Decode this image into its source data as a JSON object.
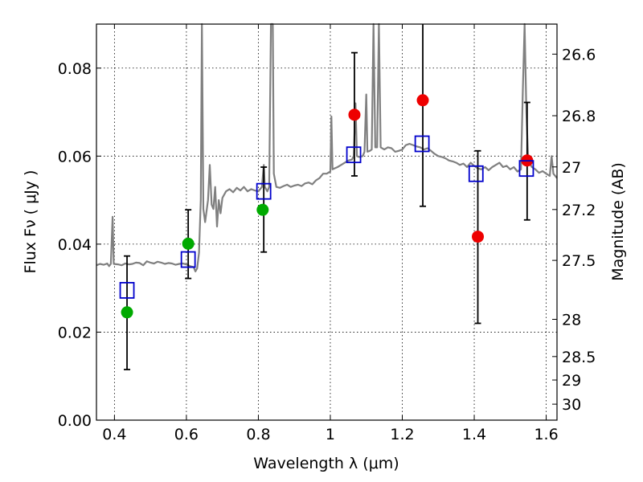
{
  "chart_data": {
    "type": "scatter",
    "xlabel": "Wavelength  λ (μm)",
    "ylabel": "Flux  Fν  ( μJy )",
    "ylabel_right": "Magnitude (AB)",
    "xlim": [
      0.35,
      1.63
    ],
    "ylim": [
      0.0,
      0.09
    ],
    "grid": true,
    "x_ticks": [
      0.4,
      0.6,
      0.8,
      1.0,
      1.2,
      1.4,
      1.6
    ],
    "x_tick_labels": [
      "0.4",
      "0.6",
      "0.8",
      "1",
      "1.2",
      "1.4",
      "1.6"
    ],
    "y_ticks": [
      0.0,
      0.02,
      0.04,
      0.06,
      0.08
    ],
    "y_tick_labels": [
      "0.00",
      "0.02",
      "0.04",
      "0.06",
      "0.08"
    ],
    "mag_ticks": [
      {
        "mag": 26.6,
        "label": "26.6"
      },
      {
        "mag": 26.8,
        "label": "26.8"
      },
      {
        "mag": 27.0,
        "label": "27"
      },
      {
        "mag": 27.2,
        "label": "27.2"
      },
      {
        "mag": 27.5,
        "label": "27.5"
      },
      {
        "mag": 28.0,
        "label": "28"
      },
      {
        "mag": 28.5,
        "label": "28.5"
      },
      {
        "mag": 29.0,
        "label": "29"
      },
      {
        "mag": 30.0,
        "label": "30"
      }
    ],
    "series": [
      {
        "kind": "spectrum",
        "color": "#808080",
        "points": [
          [
            0.35,
            0.0352
          ],
          [
            0.36,
            0.0355
          ],
          [
            0.37,
            0.0353
          ],
          [
            0.38,
            0.0356
          ],
          [
            0.385,
            0.035
          ],
          [
            0.39,
            0.0355
          ],
          [
            0.395,
            0.0462
          ],
          [
            0.398,
            0.0355
          ],
          [
            0.41,
            0.0354
          ],
          [
            0.42,
            0.0352
          ],
          [
            0.43,
            0.0356
          ],
          [
            0.44,
            0.0354
          ],
          [
            0.45,
            0.0355
          ],
          [
            0.46,
            0.0358
          ],
          [
            0.47,
            0.0357
          ],
          [
            0.48,
            0.0352
          ],
          [
            0.49,
            0.0361
          ],
          [
            0.5,
            0.0358
          ],
          [
            0.51,
            0.0356
          ],
          [
            0.52,
            0.036
          ],
          [
            0.53,
            0.0358
          ],
          [
            0.54,
            0.0355
          ],
          [
            0.55,
            0.0357
          ],
          [
            0.56,
            0.0356
          ],
          [
            0.57,
            0.0353
          ],
          [
            0.58,
            0.0355
          ],
          [
            0.59,
            0.0356
          ],
          [
            0.6,
            0.0354
          ],
          [
            0.61,
            0.035
          ],
          [
            0.62,
            0.0348
          ],
          [
            0.625,
            0.0338
          ],
          [
            0.63,
            0.0345
          ],
          [
            0.635,
            0.038
          ],
          [
            0.64,
            0.05
          ],
          [
            0.643,
            0.09
          ],
          [
            0.647,
            0.048
          ],
          [
            0.652,
            0.045
          ],
          [
            0.66,
            0.05
          ],
          [
            0.665,
            0.058
          ],
          [
            0.67,
            0.049
          ],
          [
            0.675,
            0.048
          ],
          [
            0.68,
            0.053
          ],
          [
            0.685,
            0.044
          ],
          [
            0.69,
            0.05
          ],
          [
            0.695,
            0.047
          ],
          [
            0.7,
            0.0505
          ],
          [
            0.71,
            0.052
          ],
          [
            0.72,
            0.0525
          ],
          [
            0.73,
            0.0518
          ],
          [
            0.74,
            0.0528
          ],
          [
            0.75,
            0.0522
          ],
          [
            0.76,
            0.053
          ],
          [
            0.77,
            0.052
          ],
          [
            0.78,
            0.0525
          ],
          [
            0.79,
            0.0522
          ],
          [
            0.8,
            0.052
          ],
          [
            0.81,
            0.053
          ],
          [
            0.815,
            0.058
          ],
          [
            0.818,
            0.053
          ],
          [
            0.825,
            0.052
          ],
          [
            0.83,
            0.053
          ],
          [
            0.835,
            0.09
          ],
          [
            0.84,
            0.09
          ],
          [
            0.843,
            0.056
          ],
          [
            0.85,
            0.053
          ],
          [
            0.86,
            0.0528
          ],
          [
            0.87,
            0.0532
          ],
          [
            0.88,
            0.0535
          ],
          [
            0.89,
            0.053
          ],
          [
            0.9,
            0.0533
          ],
          [
            0.91,
            0.0535
          ],
          [
            0.92,
            0.0532
          ],
          [
            0.93,
            0.0538
          ],
          [
            0.94,
            0.054
          ],
          [
            0.95,
            0.0536
          ],
          [
            0.96,
            0.0545
          ],
          [
            0.97,
            0.055
          ],
          [
            0.98,
            0.056
          ],
          [
            0.99,
            0.056
          ],
          [
            1.0,
            0.0565
          ],
          [
            1.003,
            0.069
          ],
          [
            1.006,
            0.057
          ],
          [
            1.02,
            0.0575
          ],
          [
            1.03,
            0.058
          ],
          [
            1.04,
            0.0585
          ],
          [
            1.05,
            0.059
          ],
          [
            1.06,
            0.0592
          ],
          [
            1.065,
            0.06
          ],
          [
            1.07,
            0.072
          ],
          [
            1.074,
            0.06
          ],
          [
            1.08,
            0.0598
          ],
          [
            1.09,
            0.06
          ],
          [
            1.095,
            0.061
          ],
          [
            1.1,
            0.074
          ],
          [
            1.103,
            0.061
          ],
          [
            1.11,
            0.0612
          ],
          [
            1.115,
            0.0615
          ],
          [
            1.12,
            0.09
          ],
          [
            1.125,
            0.062
          ],
          [
            1.13,
            0.062
          ],
          [
            1.135,
            0.09
          ],
          [
            1.14,
            0.062
          ],
          [
            1.15,
            0.0615
          ],
          [
            1.16,
            0.062
          ],
          [
            1.17,
            0.0618
          ],
          [
            1.18,
            0.061
          ],
          [
            1.19,
            0.0612
          ],
          [
            1.2,
            0.0615
          ],
          [
            1.21,
            0.0625
          ],
          [
            1.22,
            0.0628
          ],
          [
            1.23,
            0.0625
          ],
          [
            1.24,
            0.0622
          ],
          [
            1.25,
            0.062
          ],
          [
            1.26,
            0.0615
          ],
          [
            1.27,
            0.0618
          ],
          [
            1.28,
            0.0612
          ],
          [
            1.29,
            0.0605
          ],
          [
            1.3,
            0.06
          ],
          [
            1.31,
            0.0598
          ],
          [
            1.32,
            0.0595
          ],
          [
            1.33,
            0.059
          ],
          [
            1.34,
            0.0588
          ],
          [
            1.35,
            0.0585
          ],
          [
            1.36,
            0.058
          ],
          [
            1.37,
            0.0583
          ],
          [
            1.38,
            0.0575
          ],
          [
            1.39,
            0.0585
          ],
          [
            1.4,
            0.0578
          ],
          [
            1.41,
            0.0572
          ],
          [
            1.42,
            0.057
          ],
          [
            1.43,
            0.0575
          ],
          [
            1.44,
            0.0568
          ],
          [
            1.45,
            0.0575
          ],
          [
            1.46,
            0.058
          ],
          [
            1.47,
            0.0585
          ],
          [
            1.48,
            0.0575
          ],
          [
            1.49,
            0.0578
          ],
          [
            1.5,
            0.057
          ],
          [
            1.51,
            0.0575
          ],
          [
            1.52,
            0.0565
          ],
          [
            1.53,
            0.057
          ],
          [
            1.535,
            0.075
          ],
          [
            1.54,
            0.09
          ],
          [
            1.545,
            0.07
          ],
          [
            1.55,
            0.059
          ],
          [
            1.56,
            0.0575
          ],
          [
            1.57,
            0.057
          ],
          [
            1.58,
            0.0562
          ],
          [
            1.59,
            0.0566
          ],
          [
            1.6,
            0.056
          ],
          [
            1.61,
            0.0555
          ],
          [
            1.615,
            0.06
          ],
          [
            1.62,
            0.056
          ],
          [
            1.63,
            0.055
          ]
        ]
      },
      {
        "kind": "model-boxes",
        "color": "#0000cc",
        "x": [
          0.435,
          0.605,
          0.815,
          1.065,
          1.255,
          1.405,
          1.545
        ],
        "y": [
          0.0295,
          0.0365,
          0.052,
          0.0603,
          0.0628,
          0.056,
          0.0572
        ]
      },
      {
        "kind": "observed-green",
        "color": "#00aa00",
        "x": [
          0.435,
          0.605,
          0.812
        ],
        "y": [
          0.0245,
          0.0401,
          0.0478
        ]
      },
      {
        "kind": "observed-red",
        "color": "#ee0000",
        "x": [
          1.067,
          1.257,
          1.41,
          1.547
        ],
        "y": [
          0.0694,
          0.0727,
          0.0417,
          0.059
        ]
      },
      {
        "kind": "error-bars",
        "color": "#000000",
        "bars": [
          {
            "x": 0.435,
            "low": 0.0115,
            "high": 0.0373
          },
          {
            "x": 0.605,
            "low": 0.0322,
            "high": 0.0478
          },
          {
            "x": 0.815,
            "low": 0.0382,
            "high": 0.0575
          },
          {
            "x": 1.067,
            "low": 0.0555,
            "high": 0.0835
          },
          {
            "x": 1.257,
            "low": 0.0486,
            "high": 0.092
          },
          {
            "x": 1.41,
            "low": 0.022,
            "high": 0.0612
          },
          {
            "x": 1.547,
            "low": 0.0455,
            "high": 0.0722
          }
        ]
      }
    ]
  }
}
